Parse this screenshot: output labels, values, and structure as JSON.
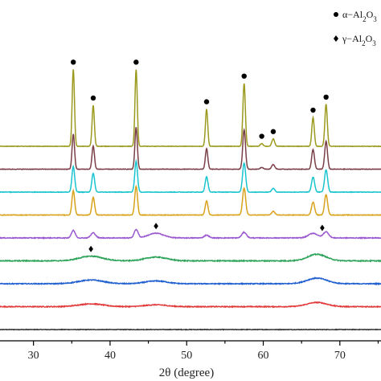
{
  "chart_data": {
    "type": "line",
    "title": "",
    "xlabel": "2θ (degree)",
    "ylabel": "",
    "xlim": [
      25,
      76
    ],
    "x_ticks": [
      30,
      40,
      50,
      60,
      70
    ],
    "grid": false,
    "legend_position": "top-right",
    "legend": [
      {
        "symbol": "circle",
        "label_base": "α−Al",
        "sub1": "2",
        "mid": "O",
        "sub2": "3"
      },
      {
        "symbol": "diamond",
        "label_base": "γ−Al",
        "sub1": "2",
        "mid": "O",
        "sub2": "3"
      }
    ],
    "series": [
      {
        "color": "#3a3a3a",
        "baseline": 0,
        "noise": 0.6,
        "peaks": []
      },
      {
        "color": "#e23a3a",
        "baseline": 1,
        "noise": 0.9,
        "peaks": [
          [
            37.5,
            6,
            1.6
          ],
          [
            46.0,
            4,
            1.4
          ],
          [
            67.0,
            9,
            1.3
          ]
        ]
      },
      {
        "color": "#1f5fcf",
        "baseline": 2,
        "noise": 0.9,
        "peaks": [
          [
            37.5,
            8,
            1.6
          ],
          [
            46.0,
            6,
            1.4
          ],
          [
            67.0,
            12,
            1.3
          ]
        ]
      },
      {
        "color": "#2ea35a",
        "baseline": 3,
        "noise": 1.0,
        "peaks": [
          [
            37.5,
            10,
            1.5
          ],
          [
            46.0,
            8,
            1.4
          ],
          [
            67.0,
            14,
            1.2
          ]
        ]
      },
      {
        "color": "#9b59d0",
        "baseline": 4,
        "noise": 0.8,
        "peaks": [
          [
            35.2,
            16,
            0.25
          ],
          [
            37.8,
            11,
            0.3
          ],
          [
            43.4,
            18,
            0.25
          ],
          [
            46.0,
            10,
            1.0
          ],
          [
            52.6,
            6,
            0.3
          ],
          [
            57.5,
            12,
            0.3
          ],
          [
            66.5,
            10,
            0.6
          ],
          [
            68.2,
            13,
            0.35
          ]
        ]
      },
      {
        "color": "#d9a21b",
        "baseline": 5,
        "noise": 0.6,
        "peaks": [
          [
            35.2,
            52,
            0.18
          ],
          [
            37.8,
            38,
            0.18
          ],
          [
            43.4,
            62,
            0.18
          ],
          [
            52.6,
            30,
            0.18
          ],
          [
            57.5,
            58,
            0.2
          ],
          [
            61.3,
            8,
            0.2
          ],
          [
            66.5,
            28,
            0.2
          ],
          [
            68.2,
            44,
            0.2
          ]
        ]
      },
      {
        "color": "#19c4cf",
        "baseline": 6,
        "noise": 0.6,
        "peaks": [
          [
            35.2,
            55,
            0.18
          ],
          [
            37.8,
            40,
            0.18
          ],
          [
            43.4,
            66,
            0.18
          ],
          [
            52.6,
            33,
            0.18
          ],
          [
            57.5,
            62,
            0.2
          ],
          [
            61.3,
            8,
            0.2
          ],
          [
            66.5,
            32,
            0.2
          ],
          [
            68.2,
            48,
            0.2
          ]
        ]
      },
      {
        "color": "#7a3f46",
        "baseline": 7,
        "noise": 0.5,
        "peaks": [
          [
            35.2,
            75,
            0.16
          ],
          [
            37.8,
            50,
            0.16
          ],
          [
            43.4,
            90,
            0.16
          ],
          [
            52.6,
            44,
            0.16
          ],
          [
            57.5,
            85,
            0.18
          ],
          [
            59.8,
            4,
            0.2
          ],
          [
            61.3,
            10,
            0.2
          ],
          [
            66.5,
            42,
            0.18
          ],
          [
            68.2,
            60,
            0.18
          ]
        ]
      },
      {
        "color": "#9c9a1e",
        "baseline": 8,
        "noise": 0.5,
        "peaks": [
          [
            35.2,
            165,
            0.15
          ],
          [
            37.8,
            88,
            0.15
          ],
          [
            43.4,
            165,
            0.15
          ],
          [
            52.6,
            80,
            0.15
          ],
          [
            57.5,
            135,
            0.16
          ],
          [
            59.8,
            6,
            0.18
          ],
          [
            61.3,
            16,
            0.18
          ],
          [
            66.5,
            62,
            0.16
          ],
          [
            68.2,
            90,
            0.16
          ]
        ]
      }
    ],
    "markers": [
      {
        "symbol": "circle",
        "x": 35.2,
        "series_index": 8
      },
      {
        "symbol": "circle",
        "x": 37.8,
        "series_index": 8
      },
      {
        "symbol": "circle",
        "x": 43.4,
        "series_index": 8
      },
      {
        "symbol": "circle",
        "x": 52.6,
        "series_index": 8
      },
      {
        "symbol": "circle",
        "x": 57.5,
        "series_index": 8
      },
      {
        "symbol": "circle",
        "x": 59.8,
        "series_index": 8
      },
      {
        "symbol": "circle",
        "x": 61.3,
        "series_index": 8
      },
      {
        "symbol": "circle",
        "x": 66.5,
        "series_index": 8
      },
      {
        "symbol": "circle",
        "x": 68.2,
        "series_index": 8
      },
      {
        "symbol": "diamond",
        "x": 46.0,
        "series_index": 4
      },
      {
        "symbol": "diamond",
        "x": 67.7,
        "series_index": 4
      },
      {
        "symbol": "diamond",
        "x": 37.5,
        "series_index": 3
      }
    ]
  }
}
